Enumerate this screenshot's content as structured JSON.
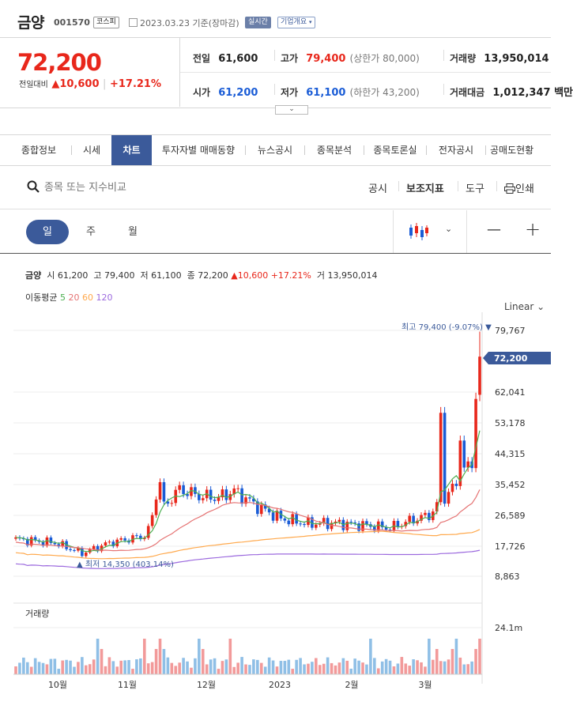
{
  "header": {
    "name": "금양",
    "code": "001570",
    "market_badge": "코스피",
    "date_text": "2023.03.23 기준(장마감)",
    "realtime_badge": "실시간",
    "company_button": "기업개요"
  },
  "quote": {
    "price": "72,200",
    "change_label": "전일대비",
    "change_value": "10,600",
    "change_pct": "+17.21%"
  },
  "stats": {
    "prev_label": "전일",
    "prev_value": "61,600",
    "high_label": "고가",
    "high_value": "79,400",
    "high_limit": "(상한가 80,000)",
    "volume_label": "거래량",
    "volume_value": "13,950,014",
    "open_label": "시가",
    "open_value": "61,200",
    "low_label": "저가",
    "low_value": "61,100",
    "low_limit": "(하한가 43,200)",
    "amount_label": "거래대금",
    "amount_value": "1,012,347 백만"
  },
  "tabs": [
    "종합정보",
    "시세",
    "차트",
    "투자자별 매매동향",
    "뉴스공시",
    "종목분석",
    "종목토론실",
    "전자공시",
    "공매도현황"
  ],
  "toolbar": {
    "search_placeholder": "종목 또는 지수비교",
    "disclosure": "공시",
    "indicator": "보조지표",
    "tools": "도구",
    "print": "인쇄"
  },
  "periods": [
    "일",
    "주",
    "월"
  ],
  "zoom": {
    "minus": "—",
    "plus": "+"
  },
  "chart_info": {
    "name": "금양",
    "open_lbl": "시",
    "open": "61,200",
    "high_lbl": "고",
    "high": "79,400",
    "low_lbl": "저",
    "low": "61,100",
    "close_lbl": "종",
    "close": "72,200",
    "change": "10,600",
    "pct": "+17.21%",
    "vol_lbl": "거",
    "vol": "13,950,014",
    "ma_label": "이동평균",
    "ma5": "5",
    "ma20": "20",
    "ma60": "60",
    "ma120": "120",
    "scale": "Linear"
  },
  "chart_data": {
    "type": "candlestick",
    "y_ticks": [
      "79,767",
      "62,041",
      "53,178",
      "44,315",
      "35,452",
      "26,589",
      "17,726",
      "8,863"
    ],
    "current_price_label": "72,200",
    "max_annotation": "최고 79,400 (-9.07%)",
    "min_annotation": "최저 14,350 (403.14%)",
    "volume_label": "거래량",
    "volume_tick": "24.1m",
    "x_labels": [
      "10월",
      "11월",
      "12월",
      "2023",
      "2월",
      "3월"
    ],
    "colors": {
      "up": "#e8271b",
      "down": "#1a5cd6",
      "ma5": "#4caf50",
      "ma20": "#e57373",
      "ma60": "#ffa94d",
      "ma120": "#9c6ade",
      "vol_up": "#f29a9a",
      "vol_down": "#8fbfe6"
    }
  }
}
